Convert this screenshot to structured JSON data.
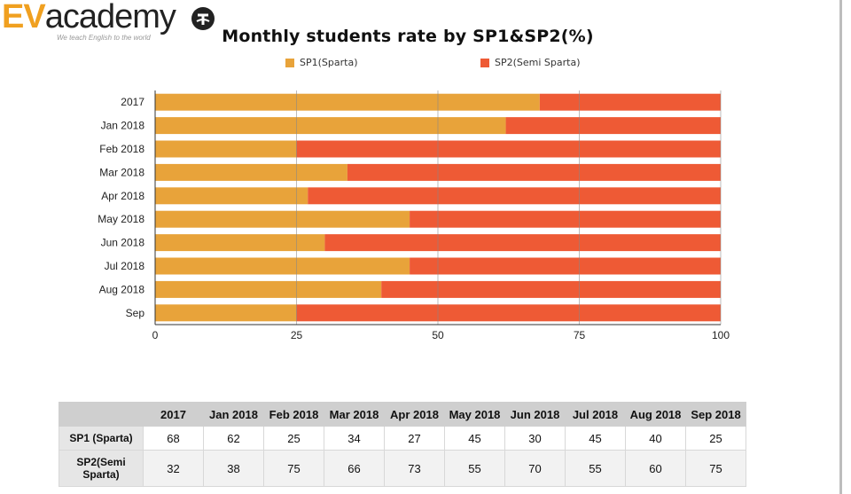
{
  "logo": {
    "brand_ev": "EV",
    "brand_rest": "academy",
    "tagline": "We teach English to the world"
  },
  "colors": {
    "sp1": "#E8A33A",
    "sp2": "#EE5A35",
    "grid": "#888888",
    "axis": "#333333"
  },
  "chart_data": {
    "type": "bar",
    "orientation": "horizontal",
    "stacked": true,
    "title": "Monthly students rate by SP1&SP2(%)",
    "categories": [
      "2017",
      "Jan 2018",
      "Feb 2018",
      "Mar 2018",
      "Apr 2018",
      "May 2018",
      "Jun 2018",
      "Jul 2018",
      "Aug 2018",
      "Sep"
    ],
    "series": [
      {
        "name": "SP1(Sparta)",
        "values": [
          68,
          62,
          25,
          34,
          27,
          45,
          30,
          45,
          40,
          25
        ]
      },
      {
        "name": "SP2(Semi Sparta)",
        "values": [
          32,
          38,
          75,
          66,
          73,
          55,
          70,
          55,
          60,
          75
        ]
      }
    ],
    "xlim": [
      0,
      100
    ],
    "xticks": [
      "0",
      "25",
      "50",
      "75",
      "100"
    ],
    "grid": true,
    "legend_position": "top"
  },
  "table": {
    "columns": [
      "2017",
      "Jan 2018",
      "Feb 2018",
      "Mar 2018",
      "Apr 2018",
      "May 2018",
      "Jun 2018",
      "Jul 2018",
      "Aug 2018",
      "Sep 2018"
    ],
    "rows": [
      {
        "label": "SP1 (Sparta)",
        "values": [
          "68",
          "62",
          "25",
          "34",
          "27",
          "45",
          "30",
          "45",
          "40",
          "25"
        ]
      },
      {
        "label": "SP2(Semi Sparta)",
        "values": [
          "32",
          "38",
          "75",
          "66",
          "73",
          "55",
          "70",
          "55",
          "60",
          "75"
        ]
      }
    ]
  }
}
